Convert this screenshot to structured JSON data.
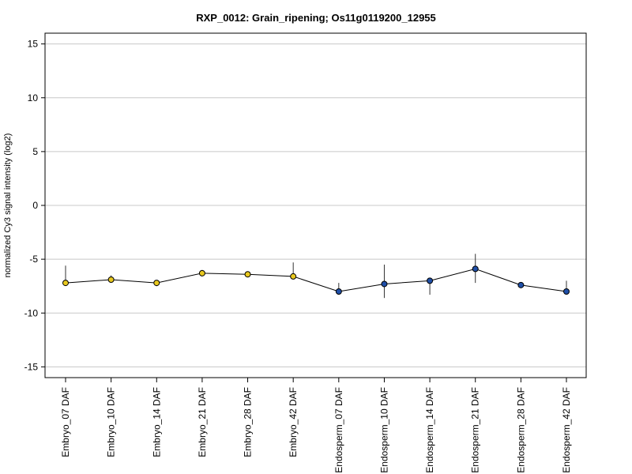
{
  "chart_data": {
    "type": "line",
    "title": "RXP_0012: Grain_ripening; Os11g0119200_12955",
    "ylabel": "normalized Cy3 signal intensity (log2)",
    "xlabel": "",
    "ylim": [
      -16,
      16
    ],
    "yticks": [
      15,
      10,
      5,
      0,
      -5,
      -10,
      -15
    ],
    "grid": "horizontal",
    "categories": [
      "Embryo_07 DAF",
      "Embryo_10 DAF",
      "Embryo_14 DAF",
      "Embryo_21 DAF",
      "Embryo_28 DAF",
      "Embryo_42 DAF",
      "Endosperm_07 DAF",
      "Endosperm_10 DAF",
      "Endosperm_14 DAF",
      "Endosperm_21 DAF",
      "Endosperm_28 DAF",
      "Endosperm_42 DAF"
    ],
    "values": [
      -7.2,
      -6.9,
      -7.2,
      -6.3,
      -6.4,
      -6.6,
      -8.0,
      -7.3,
      -7.0,
      -5.9,
      -7.4,
      -8.0
    ],
    "error_low": [
      -7.2,
      -7.1,
      -7.5,
      -6.3,
      -6.6,
      -6.8,
      -8.3,
      -8.6,
      -8.3,
      -7.2,
      -7.4,
      -8.1
    ],
    "error_high": [
      -5.6,
      -6.5,
      -7.0,
      -6.0,
      -6.2,
      -5.3,
      -7.2,
      -5.5,
      -6.8,
      -4.5,
      -7.3,
      -7.0
    ],
    "point_colors": [
      "#e8c81e",
      "#e8c81e",
      "#e8c81e",
      "#e8c81e",
      "#e8c81e",
      "#e8c81e",
      "#1f4fa8",
      "#1f4fa8",
      "#1f4fa8",
      "#1f4fa8",
      "#1f4fa8",
      "#1f4fa8"
    ],
    "line_color": "#000000",
    "grid_color": "#c8c8c8"
  }
}
